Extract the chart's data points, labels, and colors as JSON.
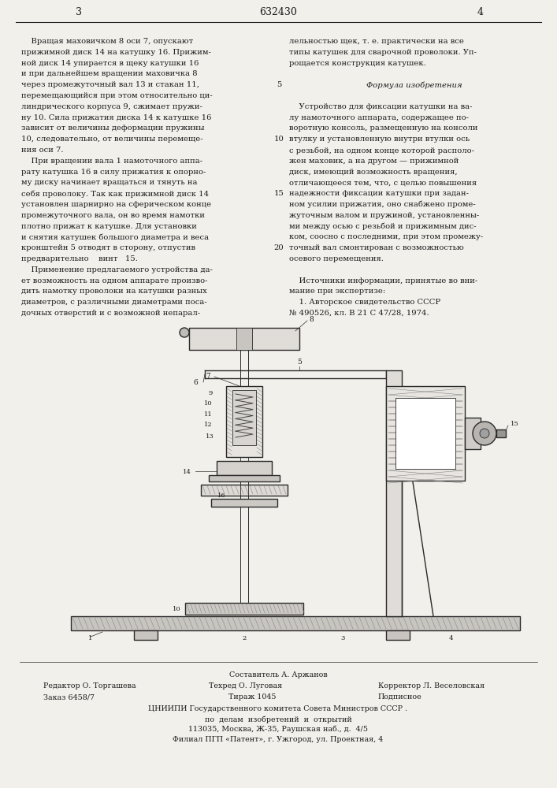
{
  "patent_number": "632430",
  "page_left": "3",
  "page_right": "4",
  "background_color": "#f2f0eb",
  "text_color": "#1a1a1a",
  "line_numbers": [
    "5",
    "10",
    "15",
    "20"
  ],
  "col_left_text": [
    "    Вращая маховичком 8 оси 7, опускают",
    "прижимной диск 14 на катушку 16. Прижим-",
    "ной диск 14 упирается в щеку катушки 16",
    "и при дальнейшем вращении маховичка 8",
    "через промежуточный вал 13 и стакан 11,",
    "перемещающийся при этом относительно ци-",
    "линдрического корпуса 9, сжимает пружи-",
    "ну 10. Сила прижатия диска 14 к катушке 16",
    "зависит от величины деформации пружины",
    "10, следовательно, от величины перемеще-",
    "ния оси 7.",
    "    При вращении вала 1 намоточного аппа-",
    "рату катушка 16 в силу прижатия к опорно-",
    "му диску начинает вращаться и тянуть на",
    "себя проволоку. Так как прижимной диск 14",
    "установлен шарнирно на сферическом конце",
    "промежуточного вала, он во время намотки",
    "плотно прижат к катушке. Для установки",
    "и снятия катушек большого диаметра и веса",
    "кронштейн 5 отводят в сторону, отпустив",
    "предварительно    винт   15.",
    "    Применение предлагаемого устройства да-",
    "ет возможность на одном аппарате произво-",
    "дить намотку проволоки на катушки разных",
    "диаметров, с различными диаметрами поса-",
    "дочных отверстий и с возможной непарал-"
  ],
  "col_right_text": [
    "лельностью щек, т. е. практически на все",
    "типы катушек для сварочной проволоки. Уп-",
    "рощается конструкция катушек.",
    "",
    "Формула изобретения",
    "",
    "    Устройство для фиксации катушки на ва-",
    "лу намоточного аппарата, содержащее по-",
    "воротную консоль, размещенную на консоли",
    "втулку и установленную внутри втулки ось",
    "с резьбой, на одном конце которой располо-",
    "жен маховик, а на другом — прижимной",
    "диск, имеющий возможность вращения,",
    "отличающееся тем, что, с целью повышения",
    "надежности фиксации катушки при задан-",
    "ном усилии прижатия, оно снабжено проме-",
    "жуточным валом и пружиной, установленны-",
    "ми между осью с резьбой и прижимным дис-",
    "ком, соосно с последними, при этом промежу-",
    "точный вал смонтирован с возможностью",
    "осевого перемещения.",
    "",
    "    Источники информации, принятые во вни-",
    "мание при экспертизе:",
    "    1. Авторское свидетельство СССР",
    "№ 490526, кл. В 21 С 47/28, 1974."
  ],
  "footer_composer": "Составитель А. Аржанов",
  "footer_editor": "Редактор О. Торгашева",
  "footer_tech": "Техред О. Луговая",
  "footer_corrector": "Корректор Л. Веселовская",
  "footer_order": "Заказ 6458/7",
  "footer_tirazh": "Тираж 1045",
  "footer_podpisnoe": "Подписное",
  "footer_tsniipi": "ЦНИИПИ Государственного комитета Совета Министров СССР .",
  "footer_po": "по  делам  изобретений  и  открытий",
  "footer_address": "113035, Москва, Ж-35, Раушская наб., д.  4/5",
  "footer_filial": "Филиал ПГП «Патент», г. Ужгород, ул. Проектная, 4"
}
